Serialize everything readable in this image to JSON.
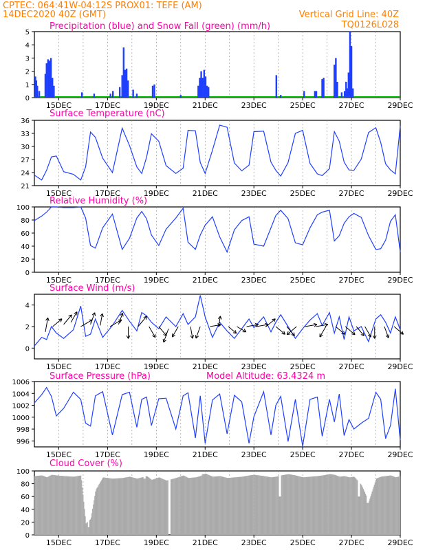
{
  "header": {
    "line1": "CPTEC:   064:41W-04:12S   PROX01: TEFE (AM)",
    "line2": "14DEC2020 40Z (GMT)",
    "grid_note": "Vertical Grid Line: 40Z",
    "code": "TQ0126L028"
  },
  "x_axis": {
    "labels": [
      "15DEC",
      "17DEC",
      "19DEC",
      "21DEC",
      "23DEC",
      "25DEC",
      "27DEC",
      "29DEC"
    ],
    "positions": [
      15,
      17,
      19,
      21,
      23,
      25,
      27,
      29
    ],
    "xlim": [
      14,
      29
    ]
  },
  "colors": {
    "header": "#ff7f00",
    "title": "#ff00aa",
    "line": "#1f3fff",
    "bar": "#1f3fff",
    "snow": "#00bb00",
    "cloud": "#aaaaaa"
  },
  "chart_data": [
    {
      "name": "precipitation",
      "type": "bar",
      "title": "Precipitation (blue) and Snow Fall (green) (mm/h)",
      "ylim": [
        0,
        5
      ],
      "yticks": [
        0,
        1,
        2,
        3,
        4,
        5
      ],
      "series": [
        {
          "name": "Precipitation",
          "color": "#1f3fff",
          "values": [
            [
              14.04,
              1.6
            ],
            [
              14.08,
              1.3
            ],
            [
              14.12,
              0.9
            ],
            [
              14.2,
              0.5
            ],
            [
              14.45,
              1.8
            ],
            [
              14.5,
              2.6
            ],
            [
              14.56,
              2.9
            ],
            [
              14.62,
              2.8
            ],
            [
              14.68,
              3.0
            ],
            [
              14.74,
              1.5
            ],
            [
              14.8,
              0.9
            ],
            [
              15.95,
              0.4
            ],
            [
              16.45,
              0.3
            ],
            [
              17.12,
              0.3
            ],
            [
              17.22,
              0.5
            ],
            [
              17.5,
              0.8
            ],
            [
              17.6,
              1.7
            ],
            [
              17.66,
              3.8
            ],
            [
              17.72,
              2.1
            ],
            [
              17.78,
              2.2
            ],
            [
              17.84,
              1.3
            ],
            [
              18.05,
              0.6
            ],
            [
              18.2,
              0.3
            ],
            [
              18.85,
              0.9
            ],
            [
              18.92,
              1.0
            ],
            [
              20.0,
              0.2
            ],
            [
              20.72,
              0.9
            ],
            [
              20.78,
              1.5
            ],
            [
              20.84,
              2.0
            ],
            [
              20.9,
              1.5
            ],
            [
              20.96,
              2.1
            ],
            [
              21.02,
              1.6
            ],
            [
              21.08,
              0.9
            ],
            [
              21.14,
              0.8
            ],
            [
              23.92,
              1.7
            ],
            [
              24.1,
              0.2
            ],
            [
              25.06,
              0.5
            ],
            [
              25.5,
              0.5
            ],
            [
              25.56,
              0.5
            ],
            [
              25.8,
              1.4
            ],
            [
              25.86,
              1.5
            ],
            [
              26.3,
              2.5
            ],
            [
              26.36,
              3.0
            ],
            [
              26.42,
              1.2
            ],
            [
              26.6,
              0.4
            ],
            [
              26.72,
              0.5
            ],
            [
              26.78,
              1.2
            ],
            [
              26.84,
              0.7
            ],
            [
              26.88,
              1.9
            ],
            [
              26.94,
              5.0
            ],
            [
              27.0,
              3.9
            ],
            [
              27.06,
              0.7
            ]
          ]
        },
        {
          "name": "Snow Fall",
          "color": "#00bb00",
          "values": []
        }
      ]
    },
    {
      "name": "temperature",
      "type": "line",
      "title": "Surface Temperature (nC)",
      "ylim": [
        21,
        36
      ],
      "yticks": [
        21,
        24,
        27,
        30,
        33,
        36
      ],
      "x": [
        14.0,
        14.3,
        14.5,
        14.7,
        14.9,
        15.2,
        15.6,
        15.9,
        16.1,
        16.3,
        16.5,
        16.8,
        17.2,
        17.6,
        17.9,
        18.2,
        18.4,
        18.6,
        18.8,
        19.1,
        19.4,
        19.8,
        20.1,
        20.3,
        20.6,
        20.8,
        21.0,
        21.3,
        21.6,
        21.9,
        22.2,
        22.5,
        22.8,
        23.0,
        23.4,
        23.7,
        23.9,
        24.1,
        24.4,
        24.7,
        25.0,
        25.3,
        25.6,
        25.8,
        26.1,
        26.3,
        26.5,
        26.7,
        26.9,
        27.1,
        27.4,
        27.7,
        28.0,
        28.2,
        28.4,
        28.6,
        28.8,
        29.0
      ],
      "values": [
        23.4,
        22.3,
        24.5,
        27.6,
        27.8,
        24.2,
        23.6,
        22.3,
        25.3,
        33.3,
        32.1,
        27.3,
        24.0,
        34.2,
        30.2,
        25.3,
        23.8,
        27.5,
        32.9,
        31.2,
        25.6,
        23.8,
        25.0,
        33.7,
        33.6,
        26.3,
        23.8,
        29.1,
        34.9,
        34.4,
        26.2,
        24.4,
        25.7,
        33.4,
        33.5,
        26.4,
        24.5,
        23.2,
        26.3,
        33.0,
        33.7,
        26.1,
        23.7,
        23.3,
        24.9,
        33.4,
        31.2,
        26.4,
        24.6,
        24.5,
        27.1,
        33.2,
        34.3,
        30.9,
        26.0,
        24.6,
        23.7,
        34.7
      ]
    },
    {
      "name": "humidity",
      "type": "line",
      "title": "Relative Humidity (%)",
      "ylim": [
        0,
        100
      ],
      "yticks": [
        0,
        20,
        40,
        60,
        80,
        100
      ],
      "x": [
        14.0,
        14.3,
        14.5,
        14.7,
        14.9,
        15.2,
        15.6,
        15.9,
        16.1,
        16.3,
        16.5,
        16.8,
        17.2,
        17.6,
        17.9,
        18.2,
        18.4,
        18.6,
        18.8,
        19.1,
        19.4,
        19.8,
        20.1,
        20.3,
        20.6,
        20.8,
        21.0,
        21.3,
        21.6,
        21.9,
        22.2,
        22.5,
        22.8,
        23.0,
        23.4,
        23.7,
        23.9,
        24.1,
        24.4,
        24.7,
        25.0,
        25.3,
        25.6,
        25.8,
        26.1,
        26.3,
        26.5,
        26.7,
        26.9,
        27.1,
        27.4,
        27.7,
        28.0,
        28.2,
        28.4,
        28.6,
        28.8,
        29.0
      ],
      "values": [
        79,
        86,
        92,
        100,
        100,
        99,
        99,
        100,
        83,
        41,
        37,
        68,
        89,
        35,
        52,
        83,
        93,
        82,
        57,
        41,
        66,
        83,
        98,
        46,
        35,
        57,
        72,
        85,
        54,
        31,
        65,
        79,
        85,
        43,
        40,
        68,
        87,
        95,
        82,
        45,
        42,
        68,
        88,
        92,
        95,
        48,
        56,
        75,
        85,
        90,
        84,
        56,
        35,
        36,
        49,
        78,
        88,
        31
      ]
    },
    {
      "name": "wind",
      "type": "line",
      "title": "Surface Wind (m/s)",
      "ylim": [
        -1,
        5
      ],
      "yticks": [
        0,
        2,
        4
      ],
      "x": [
        14.0,
        14.3,
        14.5,
        14.7,
        14.9,
        15.2,
        15.6,
        15.9,
        16.1,
        16.3,
        16.5,
        16.8,
        17.2,
        17.6,
        17.9,
        18.2,
        18.4,
        18.6,
        18.8,
        19.1,
        19.4,
        19.8,
        20.1,
        20.3,
        20.6,
        20.8,
        21.0,
        21.3,
        21.6,
        21.9,
        22.2,
        22.5,
        22.8,
        23.0,
        23.4,
        23.7,
        23.9,
        24.1,
        24.4,
        24.7,
        25.0,
        25.3,
        25.6,
        25.8,
        26.1,
        26.3,
        26.5,
        26.7,
        26.9,
        27.1,
        27.4,
        27.7,
        28.0,
        28.2,
        28.4,
        28.6,
        28.8,
        29.0
      ],
      "values": [
        0.2,
        1.0,
        0.8,
        2.0,
        1.4,
        0.9,
        1.7,
        3.9,
        1.1,
        1.3,
        2.7,
        1.0,
        2.1,
        3.5,
        2.5,
        1.6,
        3.3,
        3.0,
        2.4,
        1.8,
        2.9,
        2.0,
        3.2,
        2.2,
        2.9,
        4.9,
        2.9,
        1.0,
        2.4,
        1.6,
        0.9,
        1.8,
        2.7,
        1.9,
        2.9,
        1.5,
        2.4,
        3.1,
        2.0,
        0.9,
        1.8,
        2.6,
        3.2,
        2.1,
        3.3,
        1.4,
        2.9,
        0.8,
        2.9,
        1.6,
        2.0,
        0.6,
        2.7,
        3.1,
        2.4,
        1.4,
        2.9,
        1.7
      ],
      "barbs": [
        [
          14.45,
          1.5,
          3,
          80
        ],
        [
          14.75,
          2.0,
          2.5,
          40
        ],
        [
          15.2,
          2.2,
          2.6,
          50
        ],
        [
          15.5,
          2.4,
          2.5,
          60
        ],
        [
          15.9,
          2.0,
          2.8,
          30
        ],
        [
          16.3,
          2.2,
          2.6,
          70
        ],
        [
          16.7,
          2.1,
          2.5,
          80
        ],
        [
          17.1,
          2.0,
          2.8,
          30
        ],
        [
          17.45,
          2.2,
          2.5,
          70
        ],
        [
          17.85,
          2.0,
          2.5,
          -90
        ],
        [
          18.25,
          2.0,
          2.8,
          50
        ],
        [
          18.7,
          2.0,
          2.6,
          -60
        ],
        [
          19.1,
          2.0,
          2.5,
          -50
        ],
        [
          19.5,
          1.8,
          3.0,
          -110
        ],
        [
          19.9,
          2.0,
          2.5,
          -120
        ],
        [
          20.4,
          2.0,
          2.5,
          -80
        ],
        [
          20.8,
          2.0,
          2.6,
          -110
        ],
        [
          21.2,
          2.0,
          2.3,
          10
        ],
        [
          21.55,
          2.0,
          2.2,
          80
        ],
        [
          21.95,
          2.0,
          2.2,
          -40
        ],
        [
          22.3,
          2.0,
          2.2,
          -30
        ],
        [
          22.7,
          2.0,
          2.5,
          10
        ],
        [
          23.1,
          2.0,
          2.5,
          10
        ],
        [
          23.5,
          2.0,
          2.5,
          40
        ],
        [
          23.9,
          2.0,
          2.5,
          -40
        ],
        [
          24.35,
          2.0,
          2.5,
          -50
        ],
        [
          24.75,
          2.0,
          2.6,
          -140
        ],
        [
          25.1,
          2.0,
          2.5,
          10
        ],
        [
          25.55,
          2.0,
          2.5,
          10
        ],
        [
          25.95,
          2.0,
          2.5,
          -120
        ],
        [
          26.35,
          2.0,
          2.5,
          -40
        ],
        [
          26.75,
          2.0,
          2.6,
          -40
        ],
        [
          27.2,
          2.0,
          2.5,
          -50
        ],
        [
          27.55,
          2.0,
          2.5,
          -60
        ],
        [
          27.95,
          2.0,
          2.5,
          -90
        ],
        [
          28.35,
          2.0,
          2.5,
          -70
        ],
        [
          28.75,
          2.0,
          2.5,
          -40
        ]
      ]
    },
    {
      "name": "pressure",
      "type": "line",
      "title": "Surface Pressure (hPa)",
      "subtitle": "Model Altitude: 63.4324 m",
      "ylim": [
        995,
        1006
      ],
      "yticks": [
        996,
        998,
        1000,
        1002,
        1004,
        1006
      ],
      "x": [
        14.0,
        14.3,
        14.5,
        14.7,
        14.9,
        15.2,
        15.6,
        15.9,
        16.1,
        16.3,
        16.5,
        16.8,
        17.2,
        17.6,
        17.9,
        18.2,
        18.4,
        18.6,
        18.8,
        19.1,
        19.4,
        19.8,
        20.1,
        20.3,
        20.6,
        20.8,
        21.0,
        21.3,
        21.6,
        21.9,
        22.2,
        22.5,
        22.8,
        23.0,
        23.4,
        23.7,
        23.9,
        24.1,
        24.4,
        24.7,
        25.0,
        25.3,
        25.6,
        25.8,
        26.1,
        26.3,
        26.5,
        26.7,
        26.9,
        27.1,
        27.4,
        27.7,
        28.0,
        28.2,
        28.4,
        28.6,
        28.8,
        29.0
      ],
      "values": [
        1002.4,
        1003.8,
        1005.0,
        1003.5,
        1000.2,
        1001.5,
        1004.2,
        1003.0,
        999.0,
        998.5,
        1003.6,
        1004.3,
        997.0,
        1003.8,
        1004.2,
        998.3,
        1003.0,
        1003.4,
        998.6,
        1003.1,
        1003.2,
        998.0,
        1003.6,
        1004.1,
        996.5,
        1003.6,
        995.6,
        1002.9,
        1003.9,
        997.2,
        1003.7,
        1002.6,
        995.6,
        1000.1,
        1004.3,
        997.0,
        1002.0,
        1003.5,
        995.9,
        1003.0,
        995.1,
        1003.0,
        1003.4,
        996.8,
        1003.0,
        999.2,
        1003.9,
        996.9,
        999.6,
        998.0,
        999.0,
        999.8,
        1004.2,
        1003.0,
        996.4,
        998.6,
        1004.8,
        996.1
      ]
    },
    {
      "name": "cloud_cover",
      "type": "bar",
      "title": "Cloud Cover (%)",
      "ylim": [
        0,
        100
      ],
      "yticks": [
        0,
        20,
        40,
        60,
        80,
        100
      ],
      "x": [
        14.0,
        14.3,
        14.5,
        14.7,
        14.9,
        15.2,
        15.6,
        15.9,
        16.1,
        16.3,
        16.5,
        16.8,
        17.2,
        17.6,
        17.9,
        18.2,
        18.4,
        18.6,
        18.8,
        19.1,
        19.4,
        19.8,
        20.1,
        20.3,
        20.6,
        20.8,
        21.0,
        21.3,
        21.6,
        21.9,
        22.2,
        22.5,
        22.8,
        23.0,
        23.4,
        23.7,
        23.9,
        24.1,
        24.4,
        24.7,
        25.0,
        25.3,
        25.6,
        25.8,
        26.1,
        26.3,
        26.5,
        26.7,
        26.9,
        27.1,
        27.4,
        27.7,
        28.0,
        28.2,
        28.4,
        28.6,
        28.8,
        29.0
      ],
      "values": [
        92,
        93,
        90,
        94,
        93,
        92,
        91,
        93,
        18,
        25,
        70,
        90,
        88,
        89,
        91,
        88,
        90,
        92,
        86,
        90,
        85,
        89,
        93,
        89,
        90,
        92,
        96,
        91,
        92,
        89,
        90,
        91,
        93,
        94,
        92,
        90,
        91,
        93,
        95,
        93,
        90,
        91,
        92,
        93,
        95,
        94,
        91,
        92,
        90,
        91,
        78,
        52,
        88,
        91,
        92,
        93,
        90,
        92
      ],
      "dips": [
        [
          16.2,
          12
        ],
        [
          18.5,
          88
        ],
        [
          19.52,
          0
        ],
        [
          20.9,
          95
        ],
        [
          24.05,
          60
        ],
        [
          27.3,
          60
        ],
        [
          27.65,
          50
        ]
      ]
    }
  ]
}
